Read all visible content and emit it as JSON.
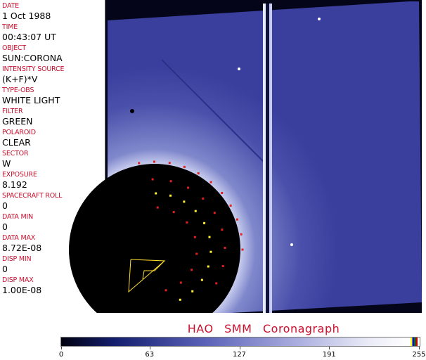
{
  "fields": [
    {
      "label": "DATE",
      "value": "1 Oct 1988"
    },
    {
      "label": "TIME",
      "value": "00:43:07 UT"
    },
    {
      "label": "OBJECT",
      "value": "SUN:CORONA"
    },
    {
      "label": "INTENSITY SOURCE",
      "value": "(K+F)*V"
    },
    {
      "label": "TYPE-OBS",
      "value": "WHITE LIGHT"
    },
    {
      "label": "FILTER",
      "value": "GREEN"
    },
    {
      "label": "POLAROID",
      "value": "CLEAR"
    },
    {
      "label": "SECTOR",
      "value": "W"
    },
    {
      "label": "EXPOSURE",
      "value": "8.192"
    },
    {
      "label": "SPACECRAFT ROLL",
      "value": "0"
    },
    {
      "label": "DATA MIN",
      "value": "0"
    },
    {
      "label": "DATA MAX",
      "value": "8.72E-08"
    },
    {
      "label": "DISP MIN",
      "value": "0"
    },
    {
      "label": "DISP MAX",
      "value": "1.00E-08"
    }
  ],
  "title": "HAO   SMM  Coronagraph",
  "colorbar": {
    "ticks": [
      "0",
      "63",
      "127",
      "191",
      "255"
    ],
    "min": 0,
    "max": 255
  },
  "colors": {
    "label": "#c8102e",
    "field": "#3a3f9e",
    "occulter": "#000000"
  }
}
